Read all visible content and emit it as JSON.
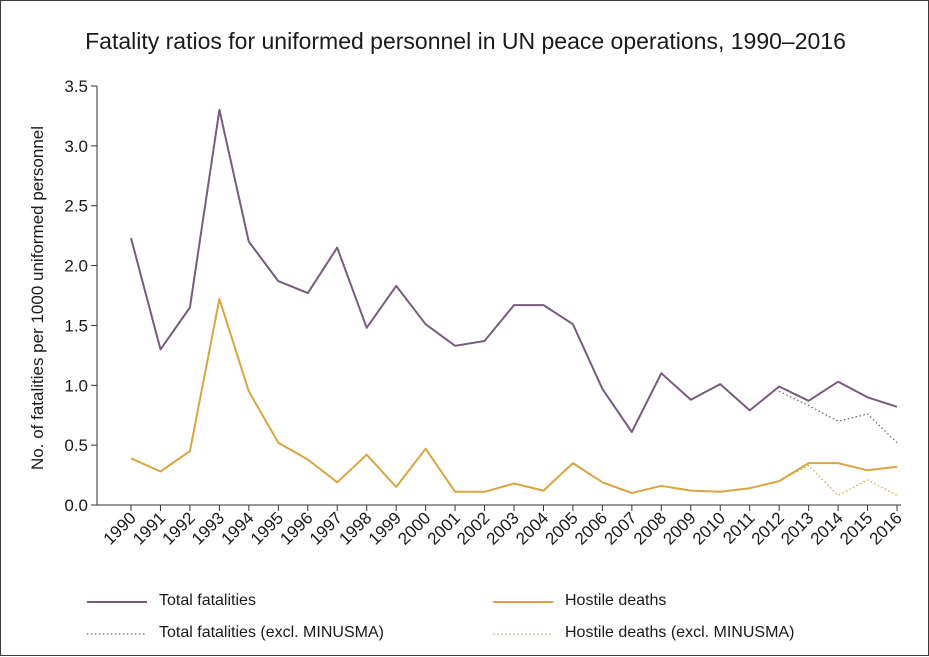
{
  "chart_data": {
    "type": "line",
    "title": "Fatality ratios for uniformed personnel in UN peace operations, 1990–2016",
    "xlabel": "",
    "ylabel": "No. of fatalities per 1000 uniformed personnel",
    "ylim": [
      0,
      3.5
    ],
    "yticks": [
      0.0,
      0.5,
      1.0,
      1.5,
      2.0,
      2.5,
      3.0,
      3.5
    ],
    "ytick_labels": [
      "0.0",
      "0.5",
      "1.0",
      "1.5",
      "2.0",
      "2.5",
      "3.0",
      "3.5"
    ],
    "grid": false,
    "legend_position": "bottom",
    "x": [
      "1990",
      "1991",
      "1992",
      "1993",
      "1994",
      "1995",
      "1996",
      "1997",
      "1998",
      "1999",
      "2000",
      "2001",
      "2002",
      "2003",
      "2004",
      "2005",
      "2006",
      "2007",
      "2008",
      "2009",
      "2010",
      "2011",
      "2012",
      "2013",
      "2014",
      "2015",
      "2016"
    ],
    "series": [
      {
        "name": "Total fatalities",
        "style": "solid",
        "color": "#7a5a80",
        "x": [
          "1990",
          "1991",
          "1992",
          "1993",
          "1994",
          "1995",
          "1996",
          "1997",
          "1998",
          "1999",
          "2000",
          "2001",
          "2002",
          "2003",
          "2004",
          "2005",
          "2006",
          "2007",
          "2008",
          "2009",
          "2010",
          "2011",
          "2012",
          "2013",
          "2014",
          "2015",
          "2016"
        ],
        "values": [
          2.23,
          1.3,
          1.65,
          3.3,
          2.2,
          1.87,
          1.77,
          2.15,
          1.48,
          1.83,
          1.51,
          1.33,
          1.37,
          1.67,
          1.67,
          1.51,
          0.97,
          0.61,
          1.1,
          0.88,
          1.01,
          0.79,
          0.99,
          0.87,
          1.03,
          0.9,
          0.82
        ]
      },
      {
        "name": "Hostile deaths",
        "style": "solid",
        "color": "#d9a441",
        "x": [
          "1990",
          "1991",
          "1992",
          "1993",
          "1994",
          "1995",
          "1996",
          "1997",
          "1998",
          "1999",
          "2000",
          "2001",
          "2002",
          "2003",
          "2004",
          "2005",
          "2006",
          "2007",
          "2008",
          "2009",
          "2010",
          "2011",
          "2012",
          "2013",
          "2014",
          "2015",
          "2016"
        ],
        "values": [
          0.39,
          0.28,
          0.45,
          1.72,
          0.95,
          0.52,
          0.38,
          0.19,
          0.42,
          0.15,
          0.47,
          0.11,
          0.11,
          0.18,
          0.12,
          0.35,
          0.19,
          0.1,
          0.16,
          0.12,
          0.11,
          0.14,
          0.2,
          0.35,
          0.35,
          0.29,
          0.32
        ]
      },
      {
        "name": "Total fatalities (excl. MINUSMA)",
        "style": "dotted",
        "color": "#6b6b6b",
        "x": [
          "2012",
          "2013",
          "2014",
          "2015",
          "2016"
        ],
        "values": [
          0.95,
          0.83,
          0.7,
          0.76,
          0.52
        ]
      },
      {
        "name": "Hostile deaths (excl. MINUSMA)",
        "style": "dotted",
        "color": "#d9a441",
        "x": [
          "2012",
          "2013",
          "2014",
          "2015",
          "2016"
        ],
        "values": [
          0.2,
          0.33,
          0.08,
          0.21,
          0.08
        ]
      }
    ]
  }
}
